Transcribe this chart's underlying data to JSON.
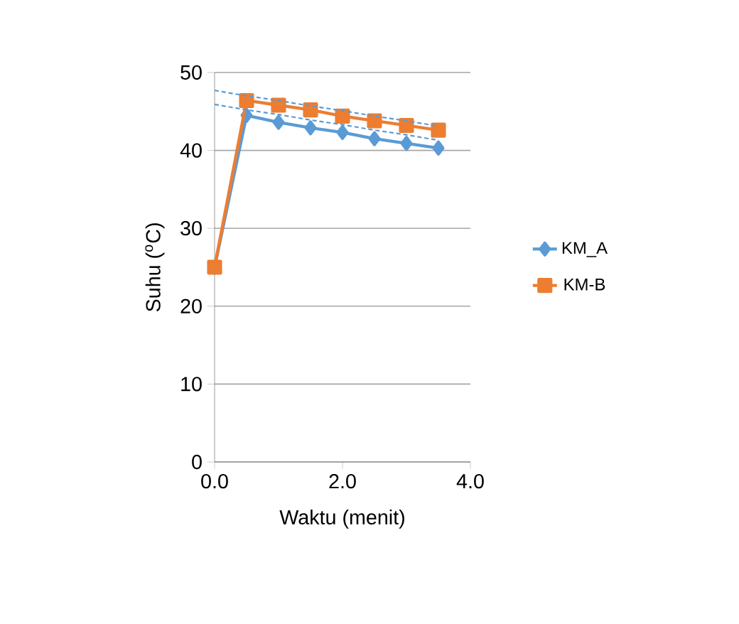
{
  "chart_data": {
    "type": "line",
    "xlabel": "Waktu (menit)",
    "ylabel": "Suhu ($^{o}$C)",
    "x": [
      0.0,
      0.5,
      1.0,
      1.5,
      2.0,
      2.5,
      3.0,
      3.5
    ],
    "series": [
      {
        "name": "KM_A",
        "color": "#5b9bd5",
        "marker": "diamond",
        "values": [
          25,
          44.5,
          43.6,
          42.9,
          42.3,
          41.5,
          40.9,
          40.3
        ]
      },
      {
        "name": "KM-B",
        "color": "#ed7d31",
        "marker": "square",
        "values": [
          25,
          46.4,
          45.8,
          45.2,
          44.4,
          43.8,
          43.2,
          42.6
        ]
      },
      {
        "type": "line",
        "color": "#5b9bd5",
        "marker": "none",
        "line_style": "dashed",
        "values": [
          47.7,
          47.0,
          46.4,
          45.7,
          45.1,
          44.4,
          43.8,
          43.1
        ]
      },
      {
        "type": "line",
        "color": "#5b9bd5",
        "marker": "none",
        "line_style": "dashed",
        "values": [
          45.9,
          45.2,
          44.6,
          43.9,
          43.3,
          42.6,
          42.0,
          41.3
        ]
      }
    ],
    "xlim": [
      0,
      4
    ],
    "ylim": [
      0,
      50
    ],
    "xticks": [
      {
        "value": 0,
        "label": "0.0"
      },
      {
        "value": 2,
        "label": "2.0"
      },
      {
        "value": 4,
        "label": "4.0"
      }
    ],
    "yticks": [
      0,
      10,
      20,
      30,
      40,
      50
    ],
    "grid": "y",
    "legend": "right"
  }
}
